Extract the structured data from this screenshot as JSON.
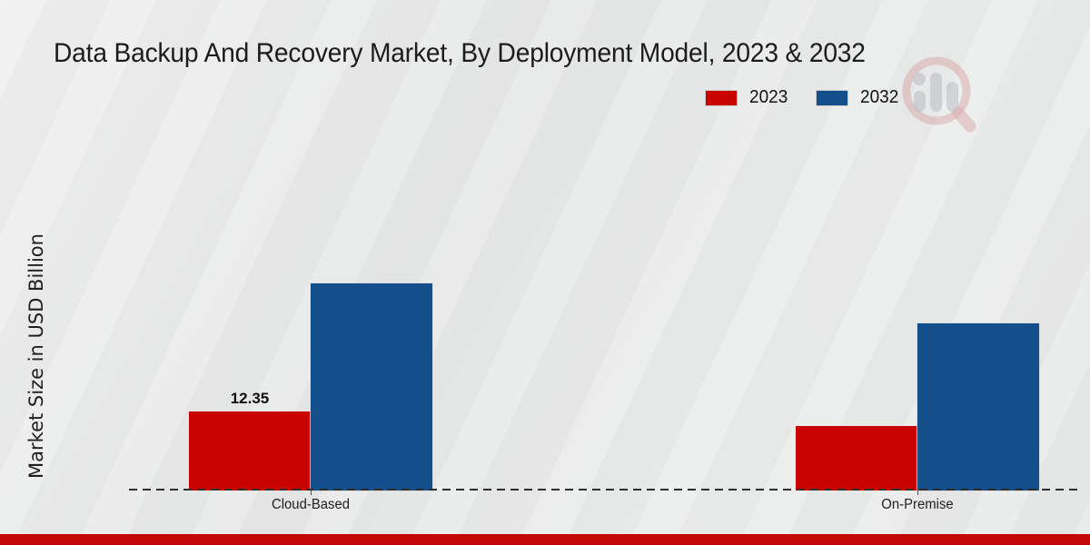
{
  "page": {
    "background": "#e9eaea",
    "accent_strip_color": "#c30707"
  },
  "header": {
    "title": "Data Backup And Recovery Market, By Deployment Model, 2023 & 2032"
  },
  "legend": {
    "items": [
      {
        "label": "2023",
        "color": "#c90302"
      },
      {
        "label": "2032",
        "color": "#134f8b"
      }
    ]
  },
  "y_axis": {
    "label": "Market Size in USD Billion"
  },
  "watermark": {
    "icon": "magnifier-bar-chart-logo-icon"
  },
  "chart_data": {
    "type": "bar",
    "title": "Data Backup And Recovery Market, By Deployment Model, 2023 & 2032",
    "xlabel": "",
    "ylabel": "Market Size in USD Billion",
    "categories": [
      "Cloud-Based",
      "On-Premise"
    ],
    "series": [
      {
        "name": "2023",
        "color": "#c90302",
        "values": [
          12.35,
          10.1
        ],
        "data_labels": [
          "12.35",
          ""
        ]
      },
      {
        "name": "2032",
        "color": "#134f8b",
        "values": [
          32.4,
          26.1
        ],
        "data_labels": [
          "",
          ""
        ]
      }
    ],
    "ylim": [
      0,
      35
    ],
    "grid": false,
    "y_axis_ticks_visible": false,
    "legend_position": "top-right",
    "baseline_style": "dashed"
  }
}
